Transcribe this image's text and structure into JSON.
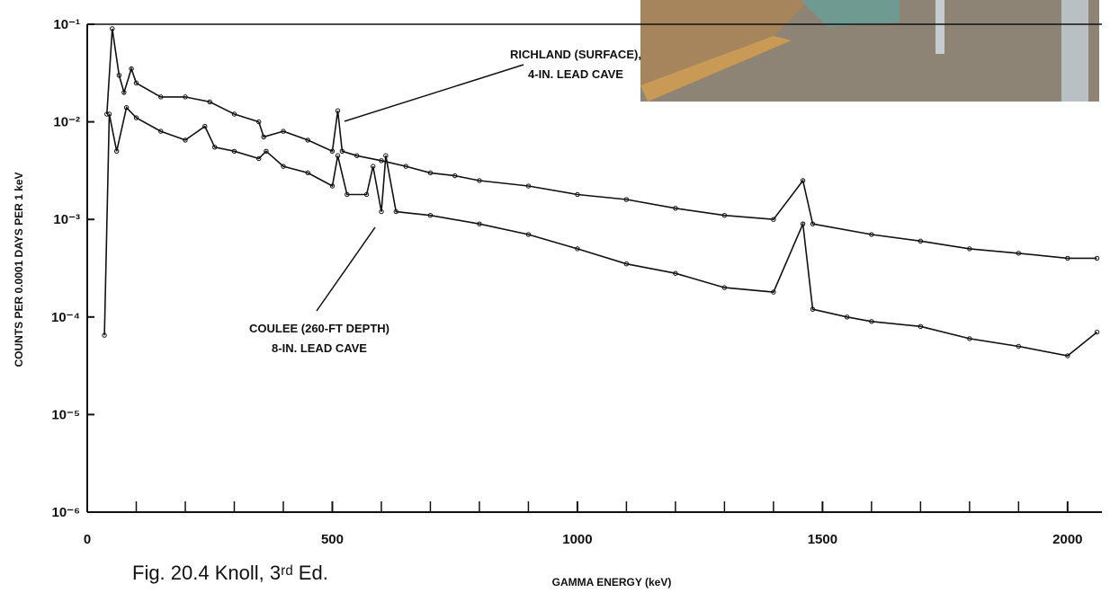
{
  "chart_data": {
    "type": "line",
    "x_label": "GAMMA ENERGY (keV)",
    "y_label": "COUNTS PER 0.0001 DAYS PER 1 keV",
    "caption": "Fig. 20.4 Knoll, 3ʳᵈ Ed.",
    "log_y": true,
    "xlim": [
      0,
      2070
    ],
    "ylim": [
      1e-06,
      0.1
    ],
    "xticks": [
      0,
      500,
      1000,
      1500,
      2000
    ],
    "xminorticks": [
      100,
      200,
      300,
      400,
      600,
      700,
      800,
      900,
      1100,
      1200,
      1300,
      1400,
      1600,
      1700,
      1800,
      1900
    ],
    "yticks": [
      {
        "value": 0.1,
        "label": "10⁻¹"
      },
      {
        "value": 0.01,
        "label": "10⁻²"
      },
      {
        "value": 0.001,
        "label": "10⁻³"
      },
      {
        "value": 0.0001,
        "label": "10⁻⁴"
      },
      {
        "value": 1e-05,
        "label": "10⁻⁵"
      },
      {
        "value": 1e-06,
        "label": "10⁻⁶"
      }
    ],
    "annotations": [
      {
        "lines": [
          "RICHLAND (SURFACE),",
          "4-IN. LEAD CAVE"
        ]
      },
      {
        "lines": [
          "COULEE (260-FT DEPTH)",
          "8-IN. LEAD CAVE"
        ]
      }
    ],
    "series": [
      {
        "color": "#111111",
        "x": [
          40,
          51,
          65,
          75,
          90,
          100,
          150,
          200,
          250,
          300,
          350,
          360,
          400,
          450,
          500,
          511,
          520,
          550,
          600,
          650,
          700,
          750,
          800,
          900,
          1000,
          1100,
          1200,
          1300,
          1400,
          1460,
          1480,
          1600,
          1700,
          1800,
          1900,
          2000,
          2060
        ],
        "values": [
          0.012,
          0.09,
          0.03,
          0.02,
          0.035,
          0.025,
          0.018,
          0.018,
          0.016,
          0.012,
          0.01,
          0.007,
          0.008,
          0.0065,
          0.005,
          0.013,
          0.005,
          0.0045,
          0.004,
          0.0035,
          0.003,
          0.0028,
          0.0025,
          0.0022,
          0.0018,
          0.0016,
          0.0013,
          0.0011,
          0.001,
          0.0025,
          0.0009,
          0.0007,
          0.0006,
          0.0005,
          0.00045,
          0.0004,
          0.0004
        ]
      },
      {
        "color": "#111111",
        "x": [
          35,
          45,
          60,
          80,
          100,
          150,
          200,
          240,
          260,
          300,
          350,
          365,
          400,
          450,
          500,
          511,
          530,
          570,
          583,
          600,
          609,
          630,
          700,
          800,
          900,
          1000,
          1100,
          1200,
          1300,
          1400,
          1460,
          1480,
          1550,
          1600,
          1700,
          1800,
          1900,
          2000,
          2060
        ],
        "values": [
          6.5e-05,
          0.012,
          0.005,
          0.014,
          0.011,
          0.008,
          0.0065,
          0.009,
          0.0055,
          0.005,
          0.0042,
          0.005,
          0.0035,
          0.003,
          0.0022,
          0.0045,
          0.0018,
          0.0018,
          0.0035,
          0.0012,
          0.0045,
          0.0012,
          0.0011,
          0.0009,
          0.0007,
          0.0005,
          0.00035,
          0.00028,
          0.0002,
          0.00018,
          0.0009,
          0.00012,
          0.0001,
          9e-05,
          8e-05,
          6e-05,
          5e-05,
          4e-05,
          7e-05
        ]
      }
    ]
  }
}
